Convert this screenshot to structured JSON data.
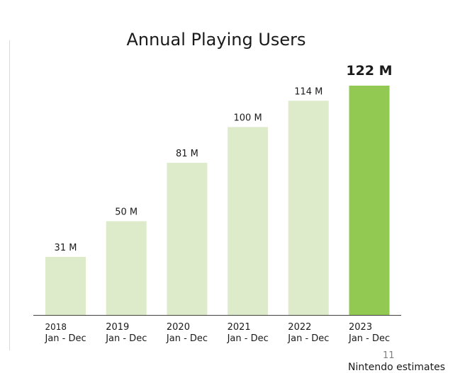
{
  "colors": {
    "bar": "#deebcb",
    "highlight_bar": "#92c952",
    "axis": "#404040",
    "text": "#1a1a1a"
  },
  "page": {
    "page_number": "11",
    "source_note": "Nintendo estimates"
  },
  "chart_data": {
    "type": "bar",
    "title": "Annual Playing Users",
    "xlabel": "",
    "ylabel": "",
    "ylim": [
      0,
      125
    ],
    "grid": false,
    "categories": [
      {
        "year": "2018",
        "period": "Jan - Dec"
      },
      {
        "year": "2019",
        "period": "Jan - Dec"
      },
      {
        "year": "2020",
        "period": "Jan - Dec"
      },
      {
        "year": "2021",
        "period": "Jan - Dec"
      },
      {
        "year": "2022",
        "period": "Jan - Dec"
      },
      {
        "year": "2023",
        "period": "Jan - Dec"
      }
    ],
    "values": [
      31,
      50,
      81,
      100,
      114,
      122
    ],
    "data_labels": [
      "31 M",
      "50 M",
      "81 M",
      "100 M",
      "114 M",
      "122 M"
    ],
    "highlight_index": 5
  }
}
